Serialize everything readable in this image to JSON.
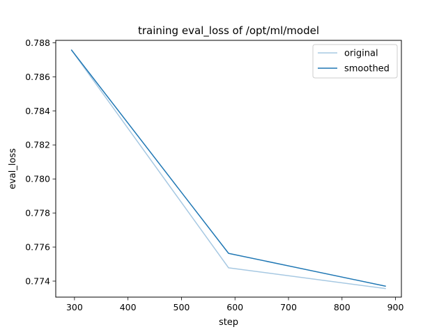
{
  "chart_data": {
    "type": "line",
    "title": "training eval_loss of /opt/ml/model",
    "xlabel": "step",
    "ylabel": "eval_loss",
    "xlim": [
      265,
      911
    ],
    "ylim": [
      0.77306,
      0.78814
    ],
    "xticks": [
      300,
      400,
      500,
      600,
      700,
      800,
      900
    ],
    "yticks": [
      0.774,
      0.776,
      0.778,
      0.78,
      0.782,
      0.784,
      0.786,
      0.788
    ],
    "xtick_labels": [
      "300",
      "400",
      "500",
      "600",
      "700",
      "800",
      "900"
    ],
    "ytick_labels": [
      "0.774",
      "0.776",
      "0.778",
      "0.780",
      "0.782",
      "0.784",
      "0.786",
      "0.788"
    ],
    "grid": false,
    "legend_position": "top-right",
    "series": [
      {
        "name": "original",
        "color": "#a6c8e2",
        "x": [
          294,
          588,
          882
        ],
        "y": [
          0.78759,
          0.77478,
          0.77356
        ]
      },
      {
        "name": "smoothed",
        "color": "#1f77b4",
        "x": [
          294,
          588,
          882
        ],
        "y": [
          0.78759,
          0.77563,
          0.7737
        ]
      }
    ]
  }
}
